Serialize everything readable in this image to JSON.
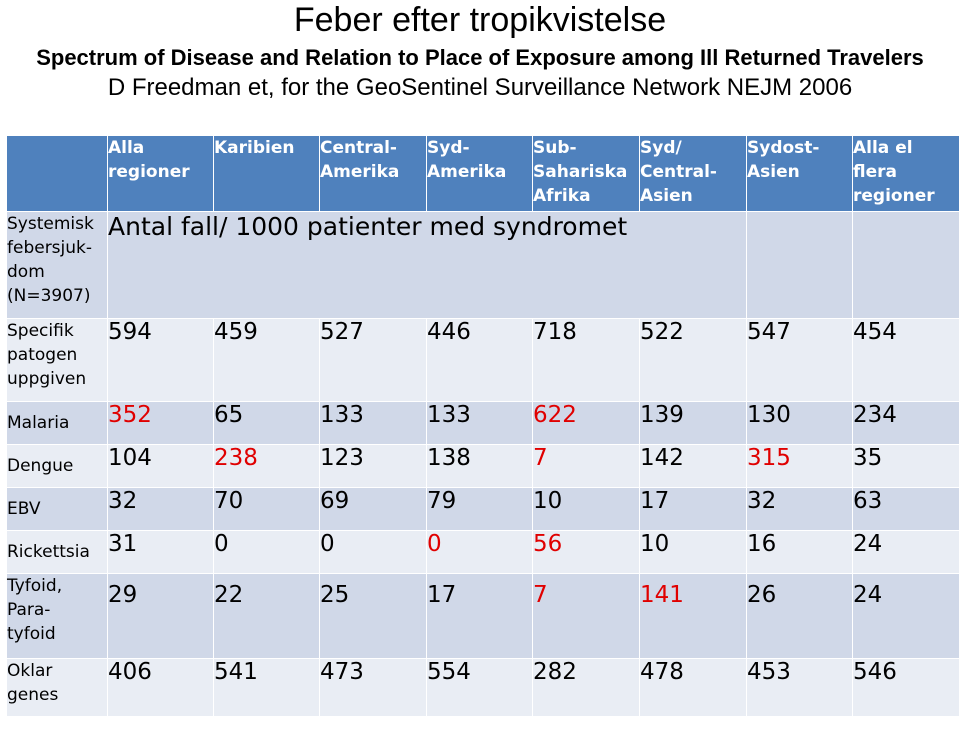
{
  "header": {
    "title": "Feber efter tropikvistelse",
    "subtitle": "Spectrum of Disease and Relation to Place of Exposure among Ill Returned Travelers",
    "author": "D Freedman et, for the GeoSentinel Surveillance Network NEJM 2006"
  },
  "table": {
    "columns": [
      "Alla regioner",
      "Karibien",
      "Central-Amerika",
      "Syd-Amerika",
      "Sub-Sahariska Afrika",
      "Syd/ Central-Asien",
      "Sydost-Asien",
      "Alla el flera regioner"
    ],
    "annotation": "Antal fall/ 1000 patienter med syndromet",
    "rows": [
      {
        "label": "Systemisk febersjukdom (N=3907)",
        "values": []
      },
      {
        "label": "Specifik patogen uppgiven",
        "values": [
          "594",
          "459",
          "527",
          "446",
          "718",
          "522",
          "547",
          "454"
        ]
      },
      {
        "label": "Malaria",
        "values": [
          "352",
          "65",
          "133",
          "133",
          "622",
          "139",
          "130",
          "234"
        ]
      },
      {
        "label": "Dengue",
        "values": [
          "104",
          "238",
          "123",
          "138",
          "7",
          "142",
          "315",
          "35"
        ]
      },
      {
        "label": "EBV",
        "values": [
          "32",
          "70",
          "69",
          "79",
          "10",
          "17",
          "32",
          "63"
        ]
      },
      {
        "label": "Rickettsia",
        "values": [
          "31",
          "0",
          "0",
          "0",
          "56",
          "10",
          "16",
          "24"
        ]
      },
      {
        "label": "Tyfoid, Paratyfoid",
        "values": [
          "29",
          "22",
          "25",
          "17",
          "7",
          "141",
          "26",
          "24"
        ]
      },
      {
        "label": "Oklar genes",
        "values": [
          "406",
          "541",
          "473",
          "554",
          "282",
          "478",
          "453",
          "546"
        ]
      }
    ]
  },
  "colors": {
    "header_bg": "#4f81bd",
    "row_dark": "#d0d8e8",
    "row_light": "#e9edf4",
    "highlight": "#e00000"
  }
}
